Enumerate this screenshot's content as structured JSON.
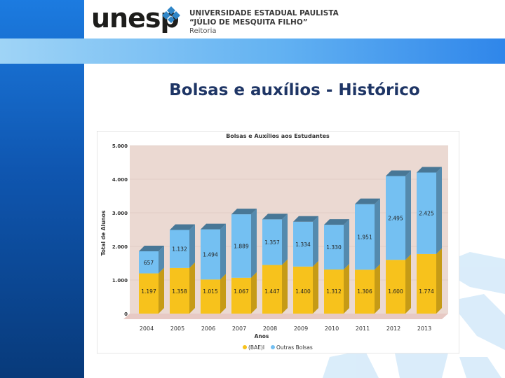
{
  "header": {
    "logo_text": "unesp",
    "university_line1": "UNIVERSIDADE ESTADUAL PAULISTA",
    "university_line2": "“JÚLIO DE MESQUITA FILHO”",
    "university_line3": "Reitoria"
  },
  "slide": {
    "title": "Bolsas e auxílios - Histórico"
  },
  "colors": {
    "series1": "#f7c21c",
    "series2": "#74c0f2",
    "plot_bg": "#ebd9d2",
    "sidebar": "#0f56b0"
  },
  "chart_data": {
    "type": "bar",
    "stacked": true,
    "title": "Bolsas e Auxílios aos Estudantes",
    "xlabel": "Anos",
    "ylabel": "Total de Alunos",
    "categories": [
      "2004",
      "2005",
      "2006",
      "2007",
      "2008",
      "2009",
      "2010",
      "2011",
      "2012",
      "2013"
    ],
    "series": [
      {
        "name": "(BAE)I",
        "values": [
          1197,
          1358,
          1015,
          1067,
          1447,
          1400,
          1312,
          1306,
          1600,
          1774
        ],
        "labels": [
          "1.197",
          "1.358",
          "1.015",
          "1.067",
          "1.447",
          "1.400",
          "1.312",
          "1.306",
          "1.600",
          "1.774"
        ]
      },
      {
        "name": "Outras Bolsas",
        "values": [
          657,
          1132,
          1494,
          1889,
          1357,
          1334,
          1330,
          1951,
          2495,
          2425
        ],
        "labels": [
          "657",
          "1.132",
          "1.494",
          "1.889",
          "1.357",
          "1.334",
          "1.330",
          "1.951",
          "2.495",
          "2.425"
        ]
      }
    ],
    "ylim": [
      0,
      5000
    ],
    "yticks": [
      0,
      1000,
      2000,
      3000,
      4000,
      5000
    ],
    "ytick_labels": [
      "0",
      "1.000",
      "2.000",
      "3.000",
      "4.000",
      "5.000"
    ],
    "grid": true,
    "legend_position": "bottom"
  }
}
